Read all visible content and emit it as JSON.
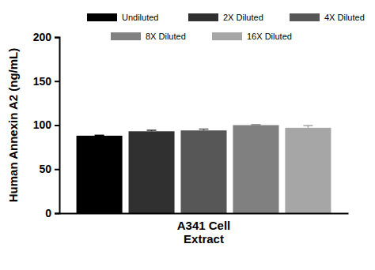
{
  "chart_data": {
    "type": "bar",
    "categories": [
      "A341 Cell Extract"
    ],
    "series": [
      {
        "name": "Undiluted",
        "color": "#000000",
        "values": [
          88
        ],
        "errors": [
          0.5
        ]
      },
      {
        "name": "2X Diluted",
        "color": "#303030",
        "values": [
          93
        ],
        "errors": [
          1.2
        ]
      },
      {
        "name": "4X Diluted",
        "color": "#575757",
        "values": [
          94
        ],
        "errors": [
          1.5
        ]
      },
      {
        "name": "8X Diluted",
        "color": "#808080",
        "values": [
          100
        ],
        "errors": [
          0.5
        ]
      },
      {
        "name": "16X Diluted",
        "color": "#a6a6a6",
        "values": [
          97
        ],
        "errors": [
          2.5
        ]
      }
    ],
    "y_label": "Human Annexin A2 (ng/mL)",
    "ylim": [
      0,
      200
    ],
    "yticks": [
      0,
      50,
      100,
      150,
      200
    ],
    "grid": false,
    "legend": "top"
  }
}
